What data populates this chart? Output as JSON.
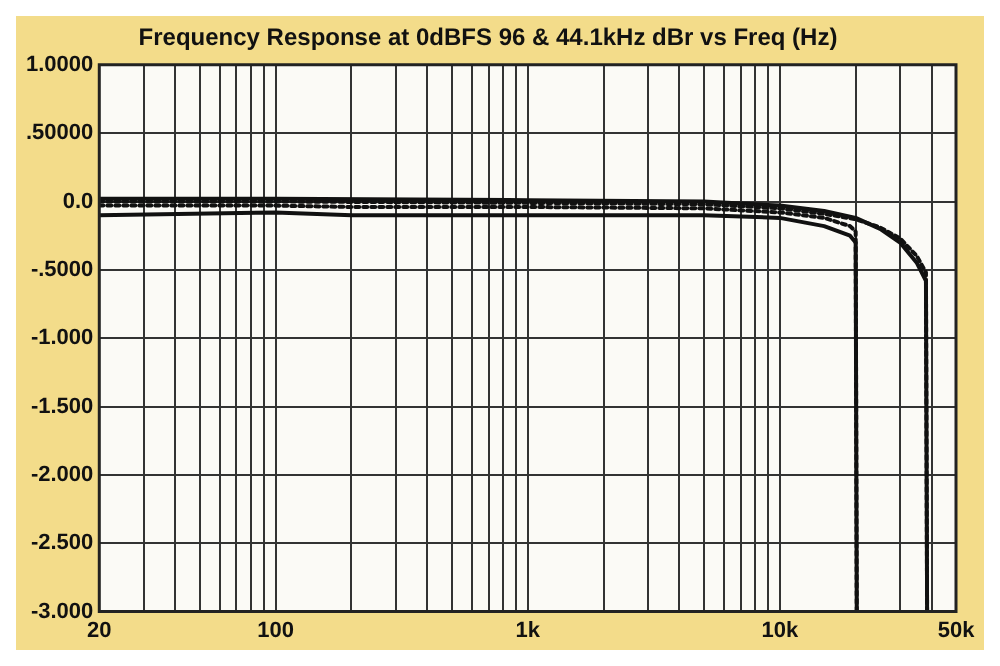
{
  "chart_data": {
    "type": "line",
    "title": "Frequency Response at 0dBFS 96 & 44.1kHz dBr vs Freq (Hz)",
    "log": "x",
    "grid": true,
    "marker": "none",
    "legend": false,
    "xlim": [
      20,
      50000
    ],
    "xticks": [
      20,
      {
        "value": 30,
        "label": null
      },
      {
        "value": 40,
        "label": null
      },
      {
        "value": 50,
        "label": null
      },
      {
        "value": 60,
        "label": null
      },
      {
        "value": 70,
        "label": null
      },
      {
        "value": 80,
        "label": null
      },
      {
        "value": 90,
        "label": null
      },
      100,
      {
        "value": 200,
        "label": null
      },
      {
        "value": 300,
        "label": null
      },
      {
        "value": 400,
        "label": null
      },
      {
        "value": 500,
        "label": null
      },
      {
        "value": 600,
        "label": null
      },
      {
        "value": 700,
        "label": null
      },
      {
        "value": 800,
        "label": null
      },
      {
        "value": 900,
        "label": null
      },
      {
        "value": 1000,
        "label": "1k"
      },
      {
        "value": 2000,
        "label": null
      },
      {
        "value": 3000,
        "label": null
      },
      {
        "value": 4000,
        "label": null
      },
      {
        "value": 5000,
        "label": null
      },
      {
        "value": 6000,
        "label": null
      },
      {
        "value": 7000,
        "label": null
      },
      {
        "value": 8000,
        "label": null
      },
      {
        "value": 9000,
        "label": null
      },
      {
        "value": 10000,
        "label": "10k"
      },
      {
        "value": 20000,
        "label": null
      },
      {
        "value": 30000,
        "label": null
      },
      {
        "value": 40000,
        "label": null
      },
      {
        "value": 50000,
        "label": "50k"
      }
    ],
    "ylim": [
      -3,
      1
    ],
    "yticks": [
      {
        "value": 1,
        "label": "1.0000"
      },
      {
        "value": 0.5,
        "label": ".50000"
      },
      {
        "value": 0,
        "label": "0.0"
      },
      {
        "value": -0.5,
        "label": "-.5000"
      },
      {
        "value": -1,
        "label": "-1.000"
      },
      {
        "value": -1.5,
        "label": "-1.500"
      },
      {
        "value": -2,
        "label": "-2.000"
      },
      {
        "value": -2.5,
        "label": "-2.500"
      },
      {
        "value": -3,
        "label": "-3.000"
      }
    ],
    "series": [
      {
        "color": "#111111",
        "line_style": "solid",
        "x": [
          20,
          100,
          1000,
          5000,
          10000,
          15000,
          20000,
          25000,
          30000,
          35000,
          38000,
          38400
        ],
        "values": [
          0.02,
          0.02,
          0.01,
          0,
          -0.03,
          -0.07,
          -0.12,
          -0.2,
          -0.3,
          -0.45,
          -0.58,
          -3
        ]
      },
      {
        "color": "#111111",
        "line_style": "dotted",
        "x": [
          20,
          100,
          1000,
          5000,
          10000,
          15000,
          20000,
          25000,
          30000,
          35000,
          38000,
          38400
        ],
        "values": [
          0,
          0,
          -0.01,
          -0.02,
          -0.05,
          -0.09,
          -0.13,
          -0.19,
          -0.27,
          -0.4,
          -0.52,
          -3
        ]
      },
      {
        "color": "#111111",
        "line_style": "solid",
        "x": [
          20,
          100,
          200,
          1000,
          5000,
          10000,
          15000,
          19000,
          20000,
          20200
        ],
        "values": [
          -0.1,
          -0.08,
          -0.1,
          -0.1,
          -0.1,
          -0.12,
          -0.18,
          -0.25,
          -0.3,
          -3
        ]
      },
      {
        "color": "#111111",
        "line_style": "dotted",
        "x": [
          20,
          100,
          200,
          1000,
          5000,
          10000,
          15000,
          19000,
          20000,
          20200
        ],
        "values": [
          -0.03,
          -0.03,
          -0.04,
          -0.04,
          -0.05,
          -0.08,
          -0.12,
          -0.18,
          -0.22,
          -3
        ]
      }
    ]
  }
}
